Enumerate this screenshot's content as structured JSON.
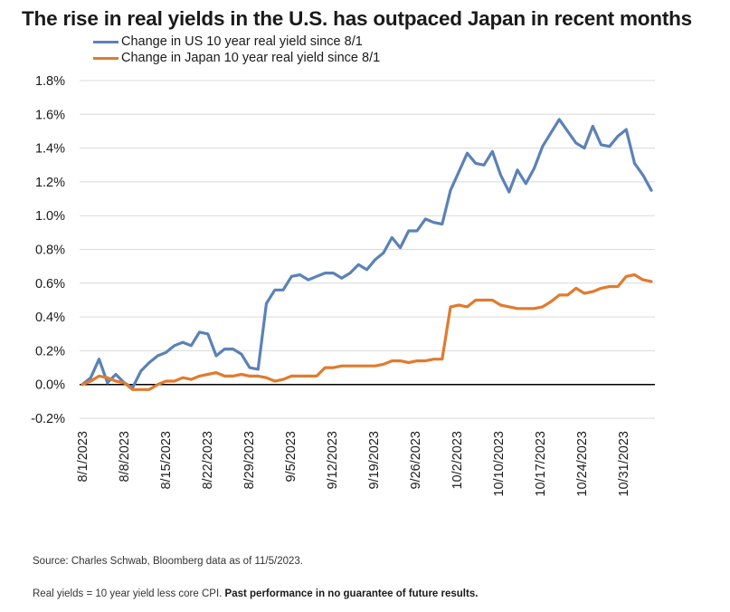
{
  "chart_data": {
    "type": "line",
    "title": "The rise in real yields in the U.S. has outpaced Japan in recent months",
    "x_tick_labels": [
      "8/1/2023",
      "8/8/2023",
      "8/15/2023",
      "8/22/2023",
      "8/29/2023",
      "9/5/2023",
      "9/12/2023",
      "9/19/2023",
      "9/26/2023",
      "10/2/2023",
      "10/10/2023",
      "10/17/2023",
      "10/24/2023",
      "10/31/2023"
    ],
    "y_tick_labels": [
      "1.8%",
      "1.6%",
      "1.4%",
      "1.2%",
      "1.0%",
      "0.8%",
      "0.6%",
      "0.4%",
      "0.2%",
      "0.0%",
      "-0.2%"
    ],
    "ylim": [
      -0.2,
      1.8
    ],
    "y_unit": "%",
    "grid": "horizontal",
    "legend_position": "top-left",
    "series": [
      {
        "name": "Change in US 10 year real yield since 8/1",
        "color": "#5b82b6",
        "values": [
          0.0,
          0.04,
          0.15,
          0.01,
          0.06,
          0.01,
          -0.02,
          0.08,
          0.13,
          0.17,
          0.19,
          0.23,
          0.25,
          0.23,
          0.31,
          0.3,
          0.17,
          0.21,
          0.21,
          0.18,
          0.1,
          0.09,
          0.48,
          0.56,
          0.56,
          0.64,
          0.65,
          0.62,
          0.64,
          0.66,
          0.66,
          0.63,
          0.66,
          0.71,
          0.68,
          0.74,
          0.78,
          0.87,
          0.81,
          0.91,
          0.91,
          0.98,
          0.96,
          0.95,
          1.15,
          1.26,
          1.37,
          1.31,
          1.3,
          1.38,
          1.24,
          1.14,
          1.27,
          1.19,
          1.28,
          1.41,
          1.49,
          1.57,
          1.5,
          1.43,
          1.4,
          1.53,
          1.42,
          1.41,
          1.47,
          1.51,
          1.31,
          1.24,
          1.15
        ]
      },
      {
        "name": "Change in Japan 10 year real yield since 8/1",
        "color": "#e07b2e",
        "values": [
          0.0,
          0.02,
          0.05,
          0.04,
          0.02,
          0.01,
          -0.03,
          -0.03,
          -0.03,
          0.0,
          0.02,
          0.02,
          0.04,
          0.03,
          0.05,
          0.06,
          0.07,
          0.05,
          0.05,
          0.06,
          0.05,
          0.05,
          0.04,
          0.02,
          0.03,
          0.05,
          0.05,
          0.05,
          0.05,
          0.1,
          0.1,
          0.11,
          0.11,
          0.11,
          0.11,
          0.11,
          0.12,
          0.14,
          0.14,
          0.13,
          0.14,
          0.14,
          0.15,
          0.15,
          0.46,
          0.47,
          0.46,
          0.5,
          0.5,
          0.5,
          0.47,
          0.46,
          0.45,
          0.45,
          0.45,
          0.46,
          0.49,
          0.53,
          0.53,
          0.57,
          0.54,
          0.55,
          0.57,
          0.58,
          0.58,
          0.64,
          0.65,
          0.62,
          0.61
        ]
      }
    ]
  },
  "footnotes": {
    "source": "Source: Charles Schwab, Bloomberg data as of 11/5/2023.",
    "note_plain": "Real yields = 10 year yield less core CPI. ",
    "note_bold": "Past performance in no guarantee of future results."
  }
}
